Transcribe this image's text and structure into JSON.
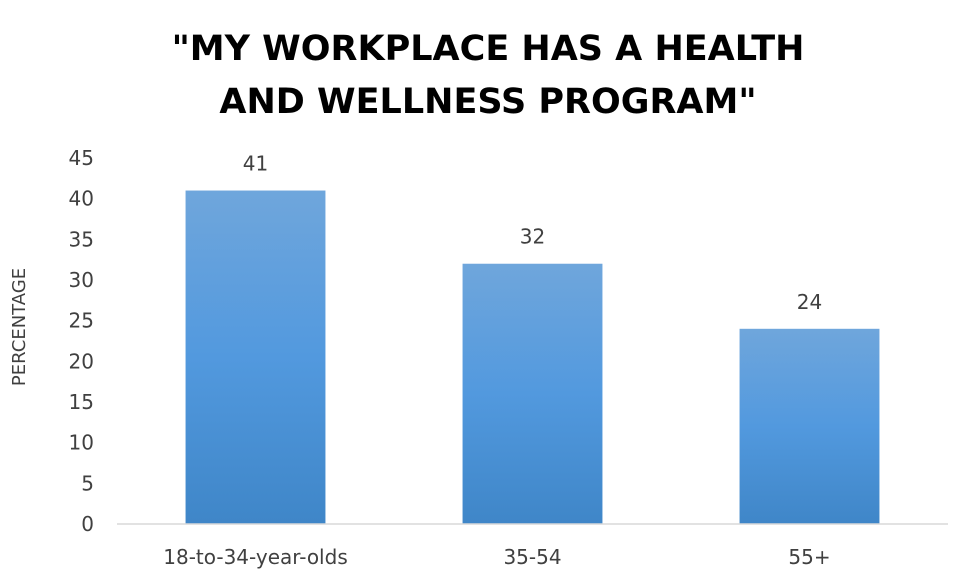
{
  "chart_data": {
    "type": "bar",
    "title": "\"MY WORKPLACE HAS A HEALTH AND WELLNESS PROGRAM\"",
    "title_lines": [
      "\"MY WORKPLACE HAS A HEALTH",
      "AND WELLNESS PROGRAM\""
    ],
    "xlabel": "",
    "ylabel": "PERCENTAGE",
    "categories": [
      "18-to-34-year-olds",
      "35-54",
      "55+"
    ],
    "values": [
      41,
      32,
      24
    ],
    "ylim": [
      0,
      45
    ],
    "yticks": [
      0,
      5,
      10,
      15,
      20,
      25,
      30,
      35,
      40,
      45
    ],
    "data_labels": true,
    "grid": false,
    "legend": "none",
    "bar_color_top": "#6fa6dc",
    "bar_color_bottom": "#3f86c8",
    "axis_color": "#d9d9d9"
  }
}
